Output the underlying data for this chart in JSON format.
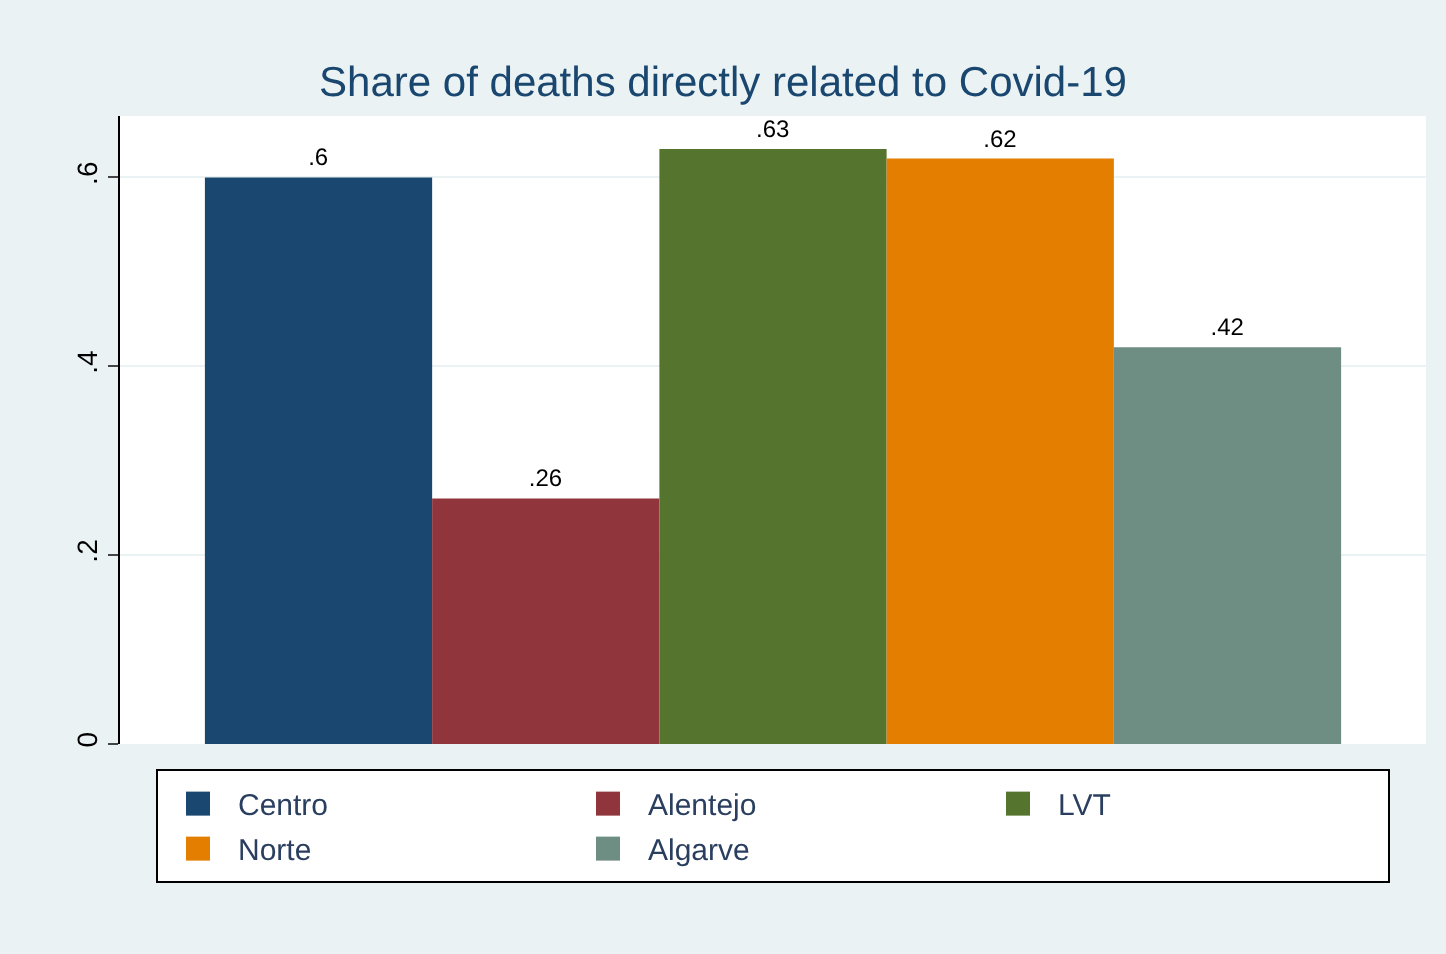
{
  "chart_data": {
    "type": "bar",
    "title": "Share of deaths directly related to Covid-19",
    "categories": [
      null
    ],
    "series": [
      {
        "name": "Centro",
        "color": "#1a476f",
        "values": [
          0.6
        ],
        "value_labels": [
          ".6"
        ]
      },
      {
        "name": "Alentejo",
        "color": "#90353b",
        "values": [
          0.26
        ],
        "value_labels": [
          ".26"
        ]
      },
      {
        "name": "LVT",
        "color": "#55752f",
        "values": [
          0.63
        ],
        "value_labels": [
          ".63"
        ]
      },
      {
        "name": "Norte",
        "color": "#e37e00",
        "values": [
          0.62
        ],
        "value_labels": [
          ".62"
        ]
      },
      {
        "name": "Algarve",
        "color": "#6e8e84",
        "values": [
          0.42
        ],
        "value_labels": [
          ".42"
        ]
      }
    ],
    "ylim": [
      0,
      0.665
    ],
    "yticks": [
      0,
      {
        "value": 0.2,
        "label": ".2"
      },
      {
        "value": 0.4,
        "label": ".4"
      },
      {
        "value": 0.6,
        "label": ".6"
      }
    ],
    "grid": "y",
    "legend": "bottom"
  }
}
